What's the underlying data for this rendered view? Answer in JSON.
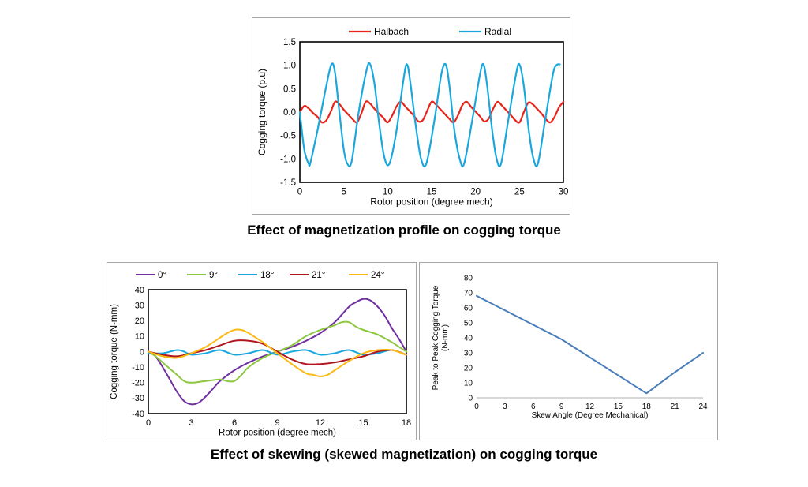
{
  "captions": {
    "top": "Effect of magnetization profile on cogging torque",
    "bottom": "Effect of skewing (skewed magnetization) on cogging torque"
  },
  "chart_data": [
    {
      "type": "line",
      "title": "",
      "xlabel": "Rotor position (degree mech)",
      "ylabel": "Cogging torque (p.u)",
      "xlim": [
        0,
        30
      ],
      "ylim": [
        -1.5,
        1.5
      ],
      "xticks": [
        "0",
        "5",
        "10",
        "15",
        "20",
        "25",
        "30"
      ],
      "yticks": [
        "1.5",
        "1.0",
        "0.5",
        "0.0",
        "-0.5",
        "-1.0",
        "-1.5"
      ],
      "grid": false,
      "legend_position": "top",
      "series": [
        {
          "name": "Halbach",
          "color": "#e8231a",
          "x": [
            0,
            0.5,
            1,
            1.5,
            2,
            2.5,
            3,
            3.5,
            4,
            4.5,
            5,
            5.5,
            6,
            6.5,
            7,
            7.5,
            8,
            8.5,
            9,
            9.5,
            10,
            10.5,
            11,
            11.5,
            12,
            12.5,
            13,
            13.5,
            14,
            14.5,
            15,
            15.5,
            16,
            16.5,
            17,
            17.5,
            18,
            18.5,
            19,
            19.5,
            20,
            20.5,
            21,
            21.5,
            22,
            22.5,
            23,
            23.5,
            24,
            24.5,
            25,
            25.5,
            26,
            26.5,
            27,
            27.5,
            28,
            28.5,
            29,
            29.5,
            30
          ],
          "values": [
            0.0,
            0.13,
            0.08,
            -0.02,
            -0.1,
            -0.22,
            -0.18,
            0.0,
            0.22,
            0.17,
            0.05,
            -0.05,
            -0.15,
            -0.22,
            -0.03,
            0.22,
            0.18,
            0.07,
            -0.03,
            -0.12,
            -0.22,
            -0.08,
            0.12,
            0.22,
            0.12,
            0.02,
            -0.08,
            -0.2,
            -0.17,
            0.03,
            0.22,
            0.16,
            0.06,
            -0.04,
            -0.14,
            -0.22,
            -0.07,
            0.15,
            0.22,
            0.11,
            0.01,
            -0.09,
            -0.2,
            -0.14,
            0.07,
            0.22,
            0.14,
            0.04,
            -0.06,
            -0.17,
            -0.22,
            0.0,
            0.2,
            0.17,
            0.07,
            -0.03,
            -0.15,
            -0.22,
            -0.1,
            0.1,
            0.22
          ]
        },
        {
          "name": "Radial",
          "color": "#1aa7de",
          "x": [
            0,
            0.5,
            1,
            1.2,
            2,
            3,
            3.6,
            4,
            4.5,
            5,
            5.4,
            5.9,
            6.7,
            7.6,
            8,
            8.5,
            9,
            9.6,
            10.2,
            11,
            11.8,
            12.2,
            12.6,
            13.2,
            13.8,
            14.4,
            15.3,
            16.1,
            16.6,
            17,
            17.6,
            18.2,
            18.7,
            19.6,
            20.5,
            20.9,
            21.3,
            21.9,
            22.4,
            22.9,
            23.7,
            24.6,
            25,
            25.5,
            26.1,
            26.6,
            27.1,
            27.9,
            28.8,
            29.2,
            29.6
          ],
          "values": [
            0.0,
            -0.8,
            -1.1,
            -1.08,
            -0.4,
            0.55,
            1.02,
            0.85,
            0.0,
            -0.8,
            -1.1,
            -1.05,
            0.0,
            0.9,
            1.02,
            0.6,
            -0.2,
            -0.95,
            -1.1,
            -0.4,
            0.7,
            1.02,
            0.6,
            -0.3,
            -1.0,
            -1.1,
            -0.2,
            0.8,
            1.02,
            0.6,
            -0.4,
            -1.0,
            -1.1,
            -0.2,
            0.8,
            1.02,
            0.6,
            -0.4,
            -1.0,
            -1.1,
            -0.2,
            0.8,
            1.02,
            0.55,
            -0.45,
            -1.0,
            -1.1,
            -0.2,
            0.8,
            1.0,
            1.02
          ]
        }
      ]
    },
    {
      "type": "line",
      "title": "",
      "xlabel": "Rotor position (degree mech)",
      "ylabel": "Cogging torque (N-mm)",
      "xlim": [
        0,
        18
      ],
      "ylim": [
        -40,
        40
      ],
      "xticks": [
        "0",
        "3",
        "6",
        "9",
        "12",
        "15",
        "18"
      ],
      "yticks": [
        "40",
        "30",
        "20",
        "10",
        "0",
        "-10",
        "-20",
        "-30",
        "-40"
      ],
      "grid": false,
      "legend_position": "top",
      "series": [
        {
          "name": "0°",
          "color": "#7030a0",
          "x": [
            0,
            0.5,
            1,
            1.5,
            2,
            2.5,
            3,
            3.5,
            4,
            4.5,
            5,
            6,
            7,
            8,
            9,
            10,
            11,
            12,
            13,
            14,
            14.5,
            15,
            15.5,
            16,
            16.5,
            17,
            17.5,
            18
          ],
          "values": [
            0,
            -3,
            -10,
            -18,
            -26,
            -32,
            -34,
            -33,
            -29,
            -24,
            -19,
            -12,
            -7,
            -3,
            0,
            3,
            7,
            12,
            19,
            29,
            32,
            34,
            33,
            29,
            23,
            15,
            8,
            0
          ]
        },
        {
          "name": "9°",
          "color": "#8dc63f",
          "x": [
            0,
            0.5,
            1,
            1.5,
            2,
            2.5,
            3,
            4,
            5,
            5.5,
            6,
            6.5,
            7,
            8,
            9,
            10,
            11,
            12,
            13,
            13.5,
            14,
            14.5,
            15,
            16,
            17,
            17.5,
            18
          ],
          "values": [
            0,
            -3,
            -7,
            -11,
            -15,
            -19,
            -20,
            -19,
            -18,
            -19,
            -19,
            -15,
            -10,
            -4,
            0,
            4,
            10,
            14,
            17,
            19,
            19,
            16,
            14,
            11,
            6,
            3,
            0
          ]
        },
        {
          "name": "18°",
          "color": "#1aa7de",
          "x": [
            0,
            1,
            2,
            2.5,
            3,
            4,
            5,
            6,
            7,
            8,
            9,
            10,
            11,
            12,
            13,
            14,
            15,
            16,
            17,
            18
          ],
          "values": [
            -1,
            -1,
            1,
            0,
            -2,
            -1,
            1,
            -2,
            -1,
            1,
            -2,
            0,
            1,
            -2,
            -1,
            1,
            -2,
            -1,
            1,
            -2
          ]
        },
        {
          "name": "21°",
          "color": "#b0161d",
          "x": [
            0,
            1,
            2,
            3,
            4,
            5,
            6,
            7,
            8,
            9,
            10,
            11,
            12,
            13,
            14,
            15,
            16,
            17,
            18
          ],
          "values": [
            0,
            -2,
            -3,
            -1,
            1,
            4,
            7,
            7,
            5,
            0,
            -5,
            -8,
            -8,
            -7,
            -5,
            -3,
            0,
            1,
            -2
          ]
        },
        {
          "name": "24°",
          "color": "#fdb913",
          "x": [
            0,
            1,
            2,
            3,
            4,
            5,
            5.5,
            6,
            6.5,
            7,
            7.5,
            8,
            9,
            10,
            11,
            11.5,
            12,
            12.5,
            13,
            14,
            15,
            16,
            17,
            18
          ],
          "values": [
            0,
            -3,
            -4,
            -1,
            3,
            9,
            12,
            14,
            14,
            12,
            9,
            6,
            -1,
            -8,
            -14,
            -15,
            -16,
            -15,
            -12,
            -6,
            -1,
            1,
            1,
            -2
          ]
        }
      ]
    },
    {
      "type": "line",
      "title": "",
      "xlabel": "Skew Angle (Degree Mechanical)",
      "ylabel_lines": [
        "Peak to Peak Cogging Torque",
        "(N-mm)"
      ],
      "xlim": [
        0,
        24
      ],
      "ylim": [
        0,
        80
      ],
      "xticks": [
        "0",
        "3",
        "6",
        "9",
        "12",
        "15",
        "18",
        "21",
        "24"
      ],
      "yticks": [
        "80",
        "70",
        "60",
        "50",
        "40",
        "30",
        "20",
        "10",
        "0"
      ],
      "grid": false,
      "series": [
        {
          "name": "",
          "color": "#4a7ebb",
          "x": [
            0,
            9,
            18,
            21,
            24
          ],
          "values": [
            68,
            39,
            3,
            17,
            30
          ]
        }
      ]
    }
  ]
}
